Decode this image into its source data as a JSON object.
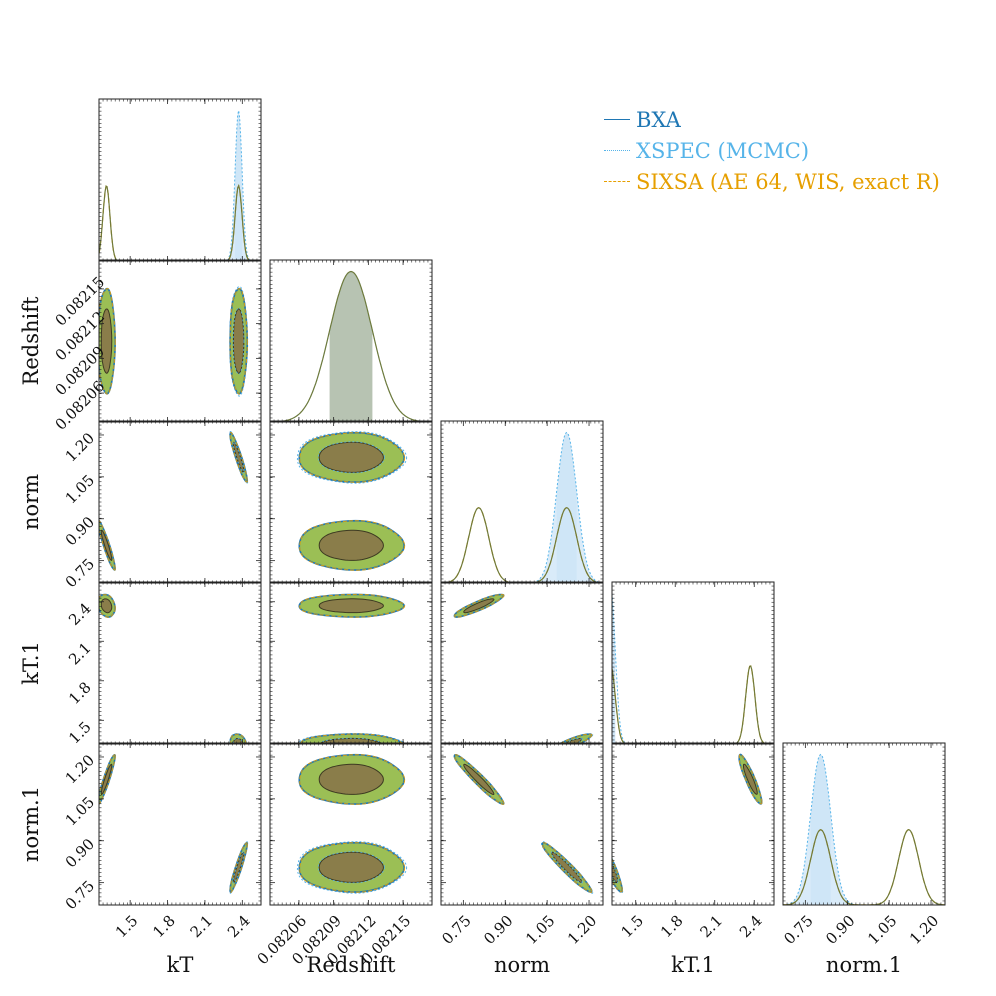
{
  "chart_data": {
    "type": "corner",
    "parameters": [
      "kT",
      "Redshift",
      "norm",
      "kT.1",
      "norm.1"
    ],
    "ranges": {
      "kT": [
        1.25,
        2.55
      ],
      "Redshift": [
        0.082035,
        0.082175
      ],
      "norm": [
        0.67,
        1.25
      ],
      "kT.1": [
        1.32,
        2.55
      ],
      "norm.1": [
        0.67,
        1.25
      ]
    },
    "ticks": {
      "kT": [
        1.5,
        1.8,
        2.1,
        2.4
      ],
      "Redshift": [
        0.08206,
        0.08209,
        0.08212,
        0.08215
      ],
      "norm": [
        0.75,
        0.9,
        1.05,
        1.2
      ],
      "kT.1": [
        1.5,
        1.8,
        2.1,
        2.4
      ],
      "norm.1": [
        0.75,
        0.9,
        1.05,
        1.2
      ]
    },
    "tick_labels": {
      "kT": [
        "1.5",
        "1.8",
        "2.1",
        "2.4"
      ],
      "Redshift": [
        "0.08206",
        "0.08209",
        "0.08212",
        "0.08215"
      ],
      "norm": [
        "0.75",
        "0.90",
        "1.05",
        "1.20"
      ],
      "kT.1": [
        "1.5",
        "1.8",
        "2.1",
        "2.4"
      ],
      "norm.1": [
        "0.75",
        "0.90",
        "1.05",
        "1.20"
      ]
    },
    "series": [
      {
        "name": "BXA",
        "color": "#1f77b4",
        "style": "solid"
      },
      {
        "name": "XSPEC (MCMC)",
        "color": "#56b4e9",
        "style": "dotted"
      },
      {
        "name": "SIXSA (AE 64, WIS, exact R)",
        "color": "#e69f00",
        "style": "dashed"
      }
    ],
    "modes": [
      {
        "kT": 1.31,
        "Redshift": 0.082105,
        "norm": 0.805,
        "kT.1": 2.37,
        "norm.1": 1.12,
        "weight": 0.5
      },
      {
        "kT": 2.37,
        "Redshift": 0.082105,
        "norm": 1.12,
        "kT.1": 1.31,
        "norm.1": 0.805,
        "weight": 0.5
      }
    ],
    "mode_widths": {
      "kT": 0.028,
      "Redshift": 1.85e-05,
      "norm": 0.036,
      "kT.1": 0.035,
      "norm.1": 0.036
    },
    "xspec_single_mode_index": 1,
    "correlations": {
      "kT|norm": -0.93,
      "norm|kT.1": 0.9,
      "kT|norm.1": 0.93,
      "norm|norm.1": -0.96,
      "kT.1|norm.1": -0.9,
      "kT|kT.1": -0.2
    }
  },
  "colors": {
    "fill_outer": "#9bbf55",
    "fill_inner": "#8a7d4a",
    "bxa_line": "#1f77b4",
    "xspec_fill": "#cfe6f7",
    "xspec_line": "#56b4e9",
    "sixsa_line": "#e69f00",
    "hist_fill": "#b7c3b2",
    "olive_line": "#6f7a3b"
  }
}
